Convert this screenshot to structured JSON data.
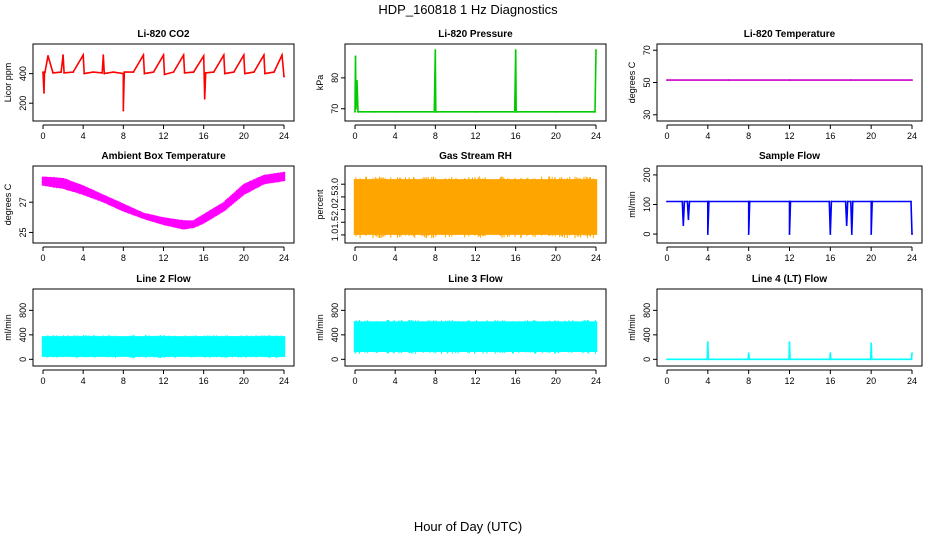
{
  "figure": {
    "title": "HDP_160818  1 Hz Diagnostics",
    "xlabel": "Hour of Day (UTC)"
  },
  "chart_data": [
    {
      "type": "line",
      "title": "Li-820 CO2",
      "ylabel": "Licor ppm",
      "color": "#ff0000",
      "xlim": [
        0,
        24
      ],
      "ylim": [
        100,
        580
      ],
      "xticks": [
        0,
        4,
        8,
        12,
        16,
        20,
        24
      ],
      "yticks": [
        200,
        400
      ],
      "x": [
        0,
        0.1,
        0.15,
        0.2,
        0.5,
        1.0,
        1.8,
        2.0,
        2.1,
        3.0,
        4.0,
        4.1,
        5.0,
        5.9,
        6.0,
        6.1,
        7.0,
        8.0,
        8.0,
        8.1,
        9.0,
        10.0,
        10.1,
        11.0,
        12.0,
        12.1,
        13.0,
        14.0,
        14.1,
        15.0,
        16.0,
        16.1,
        16.2,
        17.0,
        18.0,
        18.1,
        19.0,
        20.0,
        20.1,
        21.0,
        22.0,
        22.1,
        23.0,
        23.8,
        24.0
      ],
      "y": [
        410,
        270,
        410,
        410,
        520,
        405,
        410,
        525,
        405,
        410,
        525,
        400,
        410,
        405,
        525,
        400,
        410,
        400,
        150,
        410,
        410,
        525,
        400,
        410,
        525,
        395,
        410,
        525,
        405,
        410,
        520,
        230,
        405,
        410,
        525,
        400,
        410,
        525,
        400,
        410,
        525,
        400,
        410,
        525,
        380
      ]
    },
    {
      "type": "line",
      "title": "Li-820 Pressure",
      "ylabel": "kPa",
      "color": "#00cc00",
      "xlim": [
        0,
        24
      ],
      "ylim": [
        67,
        90
      ],
      "xticks": [
        0,
        4,
        8,
        12,
        16,
        20,
        24
      ],
      "yticks": [
        70,
        80
      ],
      "x": [
        0,
        0.05,
        0.1,
        0.2,
        0.3,
        2.0,
        4.0,
        7.9,
        8.0,
        8.05,
        8.1,
        12.0,
        15.9,
        16.0,
        16.05,
        16.1,
        20.0,
        23.9,
        24.0
      ],
      "y": [
        69,
        87,
        70,
        79,
        69,
        69,
        69,
        69,
        89,
        69,
        69,
        69,
        69,
        89,
        69,
        69,
        69,
        69,
        89
      ]
    },
    {
      "type": "line",
      "title": "Li-820 Temperature",
      "ylabel": "degrees C",
      "color": "#cc00cc",
      "xlim": [
        0,
        24
      ],
      "ylim": [
        28,
        72
      ],
      "xticks": [
        0,
        4,
        8,
        12,
        16,
        20,
        24
      ],
      "yticks": [
        30,
        50,
        70
      ],
      "x": [
        0,
        6,
        12,
        18,
        24
      ],
      "y": [
        51.5,
        51.5,
        51.5,
        51.5,
        51.5
      ]
    },
    {
      "type": "area",
      "title": "Ambient Box Temperature",
      "ylabel": "degrees C",
      "color": "#ff00ff",
      "xlim": [
        0,
        24
      ],
      "ylim": [
        24.5,
        29.2
      ],
      "xticks": [
        0,
        4,
        8,
        12,
        16,
        20,
        24
      ],
      "yticks": [
        25,
        27
      ],
      "x": [
        0,
        2,
        4,
        6,
        8,
        10,
        12,
        14,
        15,
        16,
        18,
        20,
        22,
        24
      ],
      "y_low": [
        28.1,
        27.9,
        27.5,
        27.0,
        26.4,
        25.9,
        25.5,
        25.2,
        25.3,
        25.6,
        26.4,
        27.5,
        28.2,
        28.4
      ],
      "y_high": [
        28.7,
        28.6,
        28.1,
        27.5,
        26.9,
        26.3,
        26.0,
        25.8,
        25.8,
        26.2,
        27.0,
        28.2,
        28.8,
        29.0
      ]
    },
    {
      "type": "area",
      "title": "Gas Stream RH",
      "ylabel": "percent",
      "color": "#ffa500",
      "xlim": [
        0,
        24
      ],
      "ylim": [
        0.8,
        3.6
      ],
      "xticks": [
        0,
        4,
        8,
        12,
        16,
        20,
        24
      ],
      "yticks": [
        1.0,
        1.5,
        2.0,
        2.5,
        3.0
      ],
      "x": [
        0,
        24
      ],
      "y_low": [
        1.0,
        1.0
      ],
      "y_high": [
        3.2,
        3.2
      ]
    },
    {
      "type": "line",
      "title": "Sample Flow",
      "ylabel": "ml/min",
      "color": "#0000ff",
      "xlim": [
        0,
        24
      ],
      "ylim": [
        -20,
        220
      ],
      "xticks": [
        0,
        4,
        8,
        12,
        16,
        20,
        24
      ],
      "yticks": [
        0,
        100,
        200
      ],
      "x": [
        0,
        1.5,
        1.6,
        1.7,
        2.0,
        2.1,
        2.2,
        4.0,
        4.0,
        4.1,
        8.0,
        8.0,
        8.1,
        12.0,
        12.0,
        12.1,
        15.9,
        16.0,
        16.1,
        17.5,
        17.6,
        17.7,
        18.0,
        18.1,
        18.2,
        20.0,
        20.0,
        20.1,
        23.9,
        24.0
      ],
      "y": [
        110,
        110,
        30,
        110,
        110,
        50,
        110,
        110,
        0,
        110,
        110,
        0,
        110,
        110,
        0,
        110,
        110,
        0,
        110,
        110,
        30,
        110,
        110,
        0,
        110,
        110,
        0,
        110,
        110,
        0
      ]
    },
    {
      "type": "area",
      "title": "Line 2 Flow",
      "ylabel": "ml/min",
      "color": "#00ffff",
      "xlim": [
        0,
        24
      ],
      "ylim": [
        -60,
        1100
      ],
      "xticks": [
        0,
        4,
        8,
        12,
        16,
        20,
        24
      ],
      "yticks": [
        0,
        400,
        800
      ],
      "x": [
        0,
        24
      ],
      "y_low": [
        40,
        40
      ],
      "y_high": [
        380,
        380
      ]
    },
    {
      "type": "area",
      "title": "Line 3 Flow",
      "ylabel": "ml/min",
      "color": "#00ffff",
      "xlim": [
        0,
        24
      ],
      "ylim": [
        -60,
        1100
      ],
      "xticks": [
        0,
        4,
        8,
        12,
        16,
        20,
        24
      ],
      "yticks": [
        0,
        400,
        800
      ],
      "x": [
        0,
        24
      ],
      "y_low": [
        120,
        120
      ],
      "y_high": [
        620,
        620
      ]
    },
    {
      "type": "line",
      "title": "Line 4 (LT) Flow",
      "ylabel": "ml/min",
      "color": "#00ffff",
      "xlim": [
        0,
        24
      ],
      "ylim": [
        -60,
        1100
      ],
      "xticks": [
        0,
        4,
        8,
        12,
        16,
        20,
        24
      ],
      "yticks": [
        0,
        400,
        800
      ],
      "x": [
        0,
        3.95,
        4.0,
        4.05,
        7.95,
        8.0,
        8.05,
        11.95,
        12.0,
        12.05,
        15.95,
        16.0,
        16.05,
        19.95,
        20.0,
        20.05,
        23.95,
        24.0
      ],
      "y": [
        0,
        0,
        280,
        0,
        0,
        100,
        0,
        0,
        280,
        0,
        0,
        100,
        0,
        0,
        260,
        0,
        0,
        100
      ]
    }
  ]
}
